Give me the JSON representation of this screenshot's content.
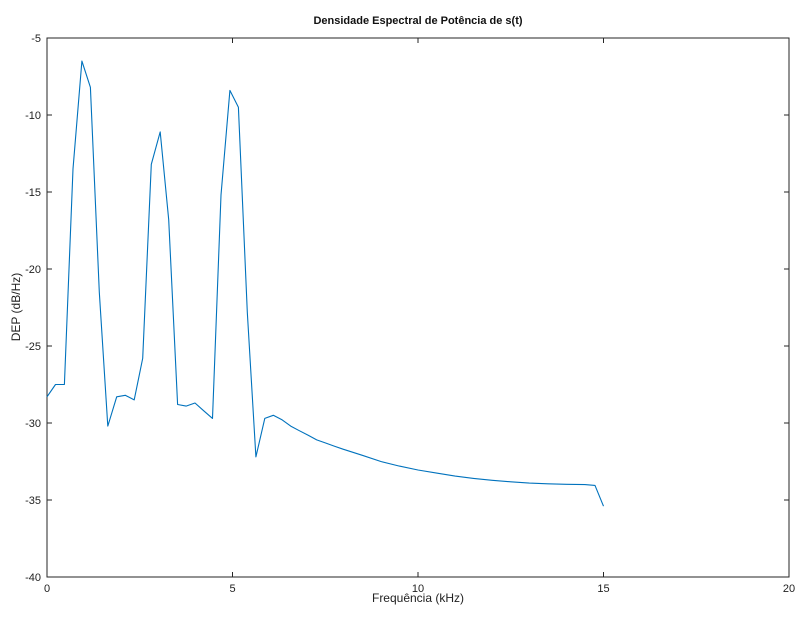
{
  "chart_data": {
    "type": "line",
    "title": "Densidade Espectral de Potência de s(t)",
    "xlabel": "Frequência (kHz)",
    "ylabel": "DEP (dB/Hz)",
    "xlim": [
      0,
      20
    ],
    "ylim": [
      -40,
      -5
    ],
    "xticks": [
      0,
      5,
      10,
      15,
      20
    ],
    "yticks": [
      -40,
      -35,
      -30,
      -25,
      -20,
      -15,
      -10,
      -5
    ],
    "grid": false,
    "series": [
      {
        "color": "#0072bd",
        "x": [
          0,
          0.23,
          0.47,
          0.7,
          0.94,
          1.17,
          1.41,
          1.64,
          1.88,
          2.11,
          2.35,
          2.58,
          2.81,
          3.05,
          3.28,
          3.52,
          3.75,
          3.99,
          4.22,
          4.46,
          4.69,
          4.93,
          5.16,
          5.4,
          5.63,
          5.87,
          6.1,
          6.34,
          6.57,
          6.8,
          7.04,
          7.27,
          7.51,
          7.74,
          7.98,
          8.5,
          9,
          9.5,
          10,
          10.5,
          11,
          11.5,
          12,
          12.5,
          13,
          13.5,
          14,
          14.5,
          14.77,
          15
        ],
        "y": [
          -28.3,
          -27.5,
          -27.5,
          -13.5,
          -6.5,
          -8.2,
          -21.5,
          -30.2,
          -28.3,
          -28.2,
          -28.5,
          -25.8,
          -13.2,
          -11.1,
          -16.8,
          -28.8,
          -28.9,
          -28.7,
          -29.2,
          -29.7,
          -15.2,
          -8.4,
          -9.5,
          -22.8,
          -32.2,
          -29.7,
          -29.5,
          -29.8,
          -30.2,
          -30.5,
          -30.8,
          -31.1,
          -31.3,
          -31.5,
          -31.7,
          -32.1,
          -32.5,
          -32.8,
          -33.05,
          -33.25,
          -33.45,
          -33.6,
          -33.72,
          -33.82,
          -33.9,
          -33.95,
          -33.98,
          -34.0,
          -34.05,
          -35.4
        ]
      }
    ]
  }
}
